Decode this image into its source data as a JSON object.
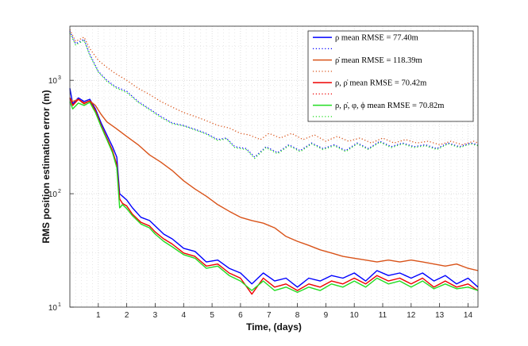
{
  "chart_data": {
    "type": "line",
    "xlabel": "Time, (days)",
    "ylabel": "RMS position estimation error (m)",
    "xlim": [
      0,
      14.35
    ],
    "ylim": [
      10,
      3000
    ],
    "yscale": "log",
    "grid": true,
    "legend_position": "top-right",
    "x_ticks": [
      1,
      2,
      3,
      4,
      5,
      6,
      7,
      8,
      9,
      10,
      11,
      12,
      13,
      14
    ],
    "x_tick_labels": [
      "1",
      "2",
      "3",
      "4",
      "5",
      "6",
      "7",
      "8",
      "9",
      "10",
      "11",
      "12",
      "13",
      "14"
    ],
    "y_ticks": [
      10,
      100,
      1000
    ],
    "y_tick_labels": [
      "10",
      "10",
      "10"
    ],
    "y_tick_exponents": [
      "1",
      "2",
      "3"
    ],
    "series": [
      {
        "name": "ρ mean RMSE = 77.40m",
        "color": "#0000ff",
        "style": "solid",
        "x": [
          0,
          0.1,
          0.3,
          0.5,
          0.7,
          0.9,
          1.1,
          1.3,
          1.5,
          1.65,
          1.75,
          1.85,
          2.0,
          2.2,
          2.5,
          2.8,
          3.0,
          3.3,
          3.6,
          4.0,
          4.4,
          4.8,
          5.2,
          5.6,
          6.0,
          6.4,
          6.8,
          7.2,
          7.6,
          8.0,
          8.4,
          8.8,
          9.2,
          9.6,
          10.0,
          10.4,
          10.8,
          11.2,
          11.6,
          12.0,
          12.4,
          12.8,
          13.2,
          13.6,
          14.0,
          14.35
        ],
        "y": [
          850,
          620,
          700,
          650,
          680,
          560,
          420,
          330,
          260,
          210,
          100,
          95,
          88,
          75,
          62,
          58,
          52,
          44,
          40,
          33,
          31,
          25,
          26,
          22,
          20,
          16,
          20,
          17,
          18,
          15,
          18,
          17,
          19,
          18,
          20,
          17,
          21,
          19,
          20,
          18,
          20,
          17,
          19,
          16,
          18,
          15
        ]
      },
      {
        "name": "",
        "color": "#0000ff",
        "style": "dotted",
        "x": [
          0,
          0.2,
          0.5,
          0.7,
          1.0,
          1.3,
          1.6,
          2.0,
          2.4,
          2.8,
          3.2,
          3.6,
          4.0,
          4.4,
          4.8,
          5.2,
          5.5,
          5.8,
          6.2,
          6.5,
          6.9,
          7.3,
          7.7,
          8.1,
          8.5,
          8.9,
          9.3,
          9.7,
          10.1,
          10.5,
          10.9,
          11.3,
          11.7,
          12.1,
          12.5,
          12.9,
          13.3,
          13.7,
          14.1,
          14.35
        ],
        "y": [
          2700,
          2100,
          2300,
          1700,
          1200,
          1000,
          880,
          800,
          650,
          560,
          480,
          420,
          400,
          370,
          340,
          300,
          310,
          260,
          250,
          210,
          260,
          230,
          270,
          240,
          280,
          250,
          270,
          240,
          280,
          250,
          290,
          260,
          280,
          260,
          270,
          250,
          280,
          260,
          280,
          270
        ]
      },
      {
        "name": "ρ̇ mean RMSE = 118.39m",
        "color": "#d95319",
        "style": "solid",
        "x": [
          0,
          0.1,
          0.3,
          0.5,
          0.7,
          0.9,
          1.1,
          1.3,
          1.6,
          2.0,
          2.4,
          2.8,
          3.2,
          3.6,
          4.0,
          4.4,
          4.8,
          5.2,
          5.6,
          6.0,
          6.4,
          6.8,
          7.2,
          7.6,
          8.0,
          8.4,
          8.8,
          9.2,
          9.6,
          10.0,
          10.4,
          10.8,
          11.2,
          11.6,
          12.0,
          12.4,
          12.8,
          13.2,
          13.6,
          14.0,
          14.35
        ],
        "y": [
          700,
          650,
          680,
          620,
          660,
          600,
          500,
          430,
          380,
          320,
          270,
          220,
          190,
          160,
          130,
          110,
          95,
          80,
          70,
          62,
          58,
          55,
          50,
          42,
          38,
          35,
          32,
          30,
          28,
          27,
          26,
          25,
          26,
          25,
          26,
          25,
          24,
          23,
          24,
          22,
          21
        ]
      },
      {
        "name": "",
        "color": "#d95319",
        "style": "dotted",
        "x": [
          0,
          0.2,
          0.5,
          0.7,
          1.0,
          1.3,
          1.6,
          2.0,
          2.4,
          2.8,
          3.2,
          3.6,
          4.0,
          4.4,
          4.8,
          5.2,
          5.6,
          6.0,
          6.3,
          6.7,
          7.0,
          7.4,
          7.8,
          8.2,
          8.6,
          9.0,
          9.4,
          9.8,
          10.2,
          10.6,
          11.0,
          11.4,
          11.8,
          12.2,
          12.6,
          13.0,
          13.4,
          13.8,
          14.2,
          14.35
        ],
        "y": [
          2800,
          2200,
          2400,
          1900,
          1500,
          1300,
          1150,
          1000,
          850,
          750,
          650,
          580,
          520,
          480,
          440,
          400,
          380,
          340,
          330,
          300,
          340,
          310,
          340,
          300,
          330,
          290,
          320,
          290,
          310,
          280,
          310,
          280,
          300,
          280,
          290,
          270,
          290,
          270,
          290,
          280
        ]
      },
      {
        "name": "ρ, ρ̇ mean RMSE = 70.42m",
        "color": "#ee0000",
        "style": "solid",
        "x": [
          0,
          0.1,
          0.3,
          0.5,
          0.7,
          0.9,
          1.1,
          1.3,
          1.5,
          1.65,
          1.75,
          1.85,
          2.0,
          2.2,
          2.5,
          2.8,
          3.0,
          3.3,
          3.6,
          4.0,
          4.4,
          4.8,
          5.2,
          5.6,
          6.0,
          6.4,
          6.8,
          7.2,
          7.6,
          8.0,
          8.4,
          8.8,
          9.2,
          9.6,
          10.0,
          10.4,
          10.8,
          11.2,
          11.6,
          12.0,
          12.4,
          12.8,
          13.2,
          13.6,
          14.0,
          14.35
        ],
        "y": [
          700,
          600,
          680,
          630,
          660,
          540,
          400,
          310,
          240,
          180,
          90,
          82,
          78,
          66,
          56,
          52,
          46,
          40,
          36,
          30,
          28,
          23,
          24,
          20,
          18,
          13,
          18,
          15,
          16,
          14,
          16,
          15,
          17,
          16,
          18,
          16,
          19,
          17,
          18,
          16,
          18,
          15,
          17,
          15,
          16,
          14
        ]
      },
      {
        "name": "",
        "color": "#ee0000",
        "style": "dotted",
        "x": [],
        "y": []
      },
      {
        "name": "ρ, ρ̇, φ, ϕ mean RMSE = 70.82m",
        "color": "#22dd22",
        "style": "solid",
        "x": [
          0,
          0.1,
          0.3,
          0.5,
          0.7,
          0.9,
          1.1,
          1.3,
          1.5,
          1.65,
          1.75,
          1.85,
          2.0,
          2.2,
          2.5,
          2.8,
          3.0,
          3.3,
          3.6,
          4.0,
          4.4,
          4.8,
          5.2,
          5.6,
          6.0,
          6.4,
          6.8,
          7.2,
          7.6,
          8.0,
          8.4,
          8.8,
          9.2,
          9.6,
          10.0,
          10.4,
          10.8,
          11.2,
          11.6,
          12.0,
          12.4,
          12.8,
          13.2,
          13.6,
          14.0,
          14.35
        ],
        "y": [
          650,
          560,
          630,
          600,
          640,
          520,
          390,
          300,
          230,
          170,
          75,
          80,
          74,
          64,
          54,
          50,
          44,
          38,
          34,
          29,
          27,
          22,
          23,
          19,
          17,
          14,
          17,
          14,
          15,
          13.5,
          15,
          14,
          16,
          15,
          17,
          15,
          18,
          16,
          17,
          15,
          17,
          14.5,
          16,
          14.5,
          15,
          14
        ]
      },
      {
        "name": "",
        "color": "#22dd22",
        "style": "dotted",
        "x": [
          0,
          0.2,
          0.5,
          0.7,
          1.0,
          1.3,
          1.6,
          2.0,
          2.4,
          2.8,
          3.2,
          3.6,
          4.0,
          4.4,
          4.8,
          5.2,
          5.5,
          5.8,
          6.2,
          6.5,
          6.9,
          7.3,
          7.7,
          8.1,
          8.5,
          8.9,
          9.3,
          9.7,
          10.1,
          10.5,
          10.9,
          11.3,
          11.7,
          12.1,
          12.5,
          12.9,
          13.3,
          13.7,
          14.1,
          14.35
        ],
        "y": [
          2600,
          2050,
          2250,
          1650,
          1180,
          980,
          860,
          780,
          640,
          550,
          470,
          415,
          395,
          365,
          335,
          295,
          305,
          255,
          245,
          205,
          255,
          225,
          265,
          235,
          275,
          245,
          265,
          235,
          275,
          245,
          285,
          255,
          275,
          255,
          265,
          245,
          275,
          255,
          275,
          265
        ]
      }
    ]
  }
}
